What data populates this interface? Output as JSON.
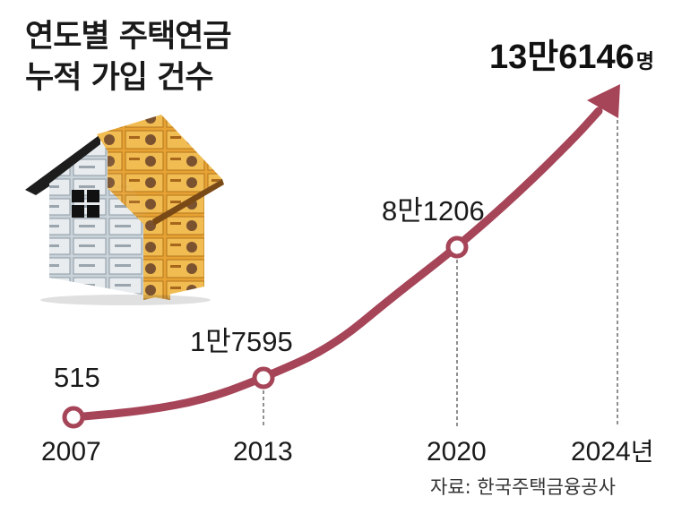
{
  "title_line1": "연도별 주택연금",
  "title_line2": "누적 가입 건수",
  "source": "자료: 한국주택금융공사",
  "chart_data": {
    "type": "line",
    "title": "연도별 주택연금 누적 가입 건수",
    "series_color": "#a64458",
    "x_unit": "년",
    "value_unit": "명",
    "labeled_points": [
      {
        "year": 2007,
        "value": 515,
        "label": "515"
      },
      {
        "year": 2013,
        "value": 17595,
        "label": "1만7595"
      },
      {
        "year": 2020,
        "value": 81206,
        "label": "8만1206"
      },
      {
        "year": 2024,
        "value": 136146,
        "label": "13만6146"
      }
    ],
    "x_ticks": [
      "2007",
      "2013",
      "2020",
      "2024"
    ]
  }
}
